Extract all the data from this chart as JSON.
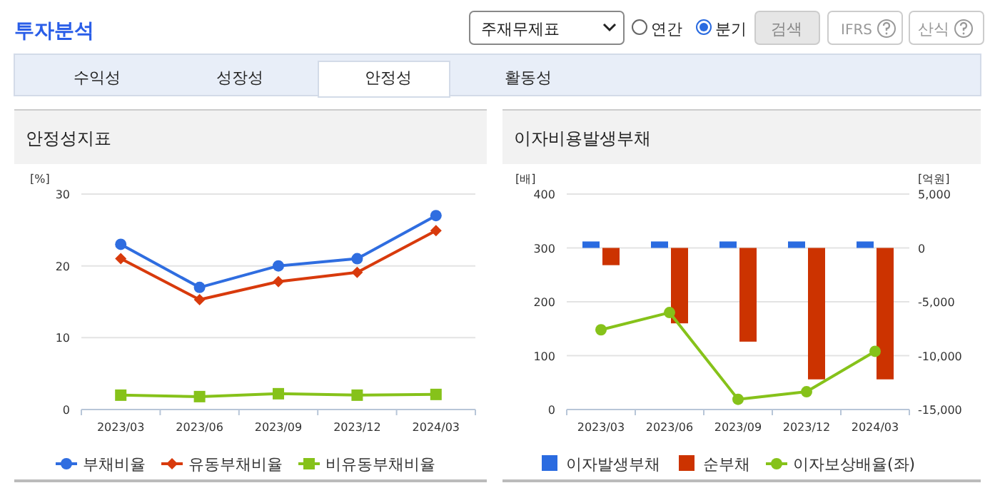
{
  "chart_data": [
    {
      "type": "other",
      "title": "투자분석",
      "annotations": [
        "주재무제표",
        "연간",
        "분기",
        "검색",
        "IFRS",
        "산식",
        "수익성",
        "성장성",
        "안정성",
        "활동성"
      ]
    },
    {
      "type": "line",
      "title": "안정성지표",
      "ylabel": "[%]",
      "categories": [
        "2023/03",
        "2023/06",
        "2023/09",
        "2023/12",
        "2024/03"
      ],
      "ylim": [
        0,
        30
      ],
      "yticks": [
        0,
        10,
        20,
        30
      ],
      "grid": "y",
      "legend": "bottom",
      "series": [
        {
          "name": "부채비율",
          "color": "#2f6de0",
          "marker": "circle",
          "values": [
            23,
            17,
            20,
            21,
            27
          ]
        },
        {
          "name": "유동부채비율",
          "color": "#d83a0c",
          "marker": "diamond",
          "values": [
            21,
            15.3,
            17.8,
            19.1,
            24.9
          ]
        },
        {
          "name": "비유동부채비율",
          "color": "#86c21a",
          "marker": "square",
          "values": [
            2,
            1.8,
            2.2,
            2,
            2.1
          ]
        }
      ]
    },
    {
      "type": "bar",
      "title": "이자비용발생부채",
      "ylabel": "[배]",
      "y2label": "[억원]",
      "categories": [
        "2023/03",
        "2023/06",
        "2023/09",
        "2023/12",
        "2024/03"
      ],
      "ylim": [
        0,
        400
      ],
      "yticks": [
        0,
        100,
        200,
        300,
        400
      ],
      "y2lim": [
        -15000,
        5000
      ],
      "y2ticks": [
        {
          "value": -15000,
          "label": "-15,000"
        },
        {
          "value": -10000,
          "label": "-10,000"
        },
        {
          "value": -5000,
          "label": "-5,000"
        },
        0,
        {
          "value": 5000,
          "label": "5,000"
        }
      ],
      "grid": "y",
      "legend": "bottom",
      "series": [
        {
          "name": "이자발생부채",
          "color": "#2a6be0",
          "axis": "y2",
          "values": [
            600,
            600,
            600,
            600,
            600
          ]
        },
        {
          "name": "순부채",
          "color": "#cc3300",
          "axis": "y2",
          "values": [
            -1600,
            -7000,
            -8700,
            -12200,
            -12200
          ]
        },
        {
          "name": "이자보상배율(좌)",
          "type": "line",
          "color": "#86c21a",
          "marker": "circle",
          "values": [
            148,
            180,
            19,
            33,
            108
          ]
        }
      ]
    }
  ]
}
